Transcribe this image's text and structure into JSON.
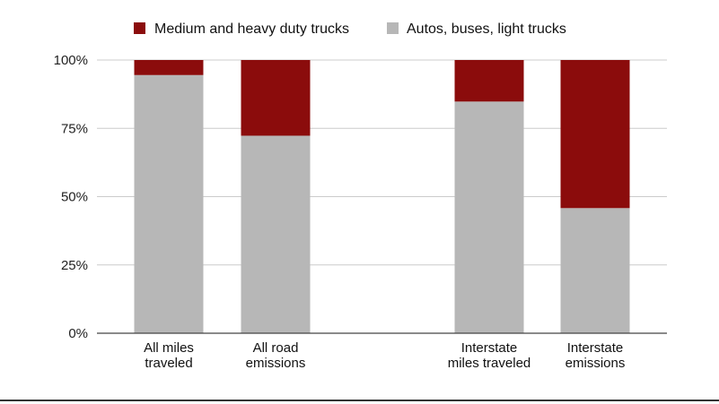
{
  "chart_data": {
    "type": "bar",
    "stacked": true,
    "categories": [
      [
        "All miles",
        "traveled"
      ],
      [
        "All road",
        "emissions"
      ],
      [
        "Interstate",
        "miles traveled"
      ],
      [
        "Interstate",
        "emissions"
      ]
    ],
    "series": [
      {
        "name": "Autos, buses, light trucks",
        "color": "#b7b7b7",
        "values": [
          94.5,
          72.3,
          84.8,
          45.8
        ]
      },
      {
        "name": "Medium and heavy duty trucks",
        "color": "#8b0c0c",
        "values": [
          5.5,
          27.7,
          15.2,
          54.2
        ]
      }
    ],
    "legend_order": [
      1,
      0
    ],
    "legend_position": "top",
    "ylim": [
      0,
      100
    ],
    "yticks": [
      0,
      25,
      50,
      75,
      100
    ],
    "ytick_labels": [
      "0%",
      "25%",
      "50%",
      "75%",
      "100%"
    ],
    "grid": true,
    "colors": {
      "grid": "#cccccc",
      "axis": "#444444"
    }
  }
}
